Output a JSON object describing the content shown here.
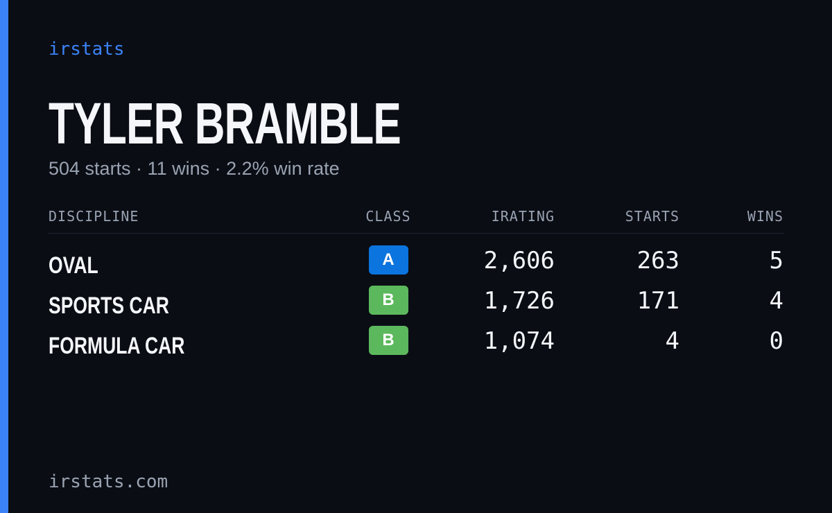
{
  "brand": "irstats",
  "header": {
    "name": "TYLER BRAMBLE",
    "summary": "504 starts · 11 wins · 2.2% win rate"
  },
  "table": {
    "columns": [
      "DISCIPLINE",
      "CLASS",
      "IRATING",
      "STARTS",
      "WINS"
    ],
    "rows": [
      [
        "OVAL",
        "A",
        "2,606",
        "263",
        "5"
      ],
      [
        "SPORTS CAR",
        "B",
        "1,726",
        "171",
        "4"
      ],
      [
        "FORMULA CAR",
        "B",
        "1,074",
        "4",
        "0"
      ]
    ],
    "class_colors": {
      "A": "#0b74de",
      "B": "#5cb85c"
    }
  },
  "footer": "irstats.com"
}
